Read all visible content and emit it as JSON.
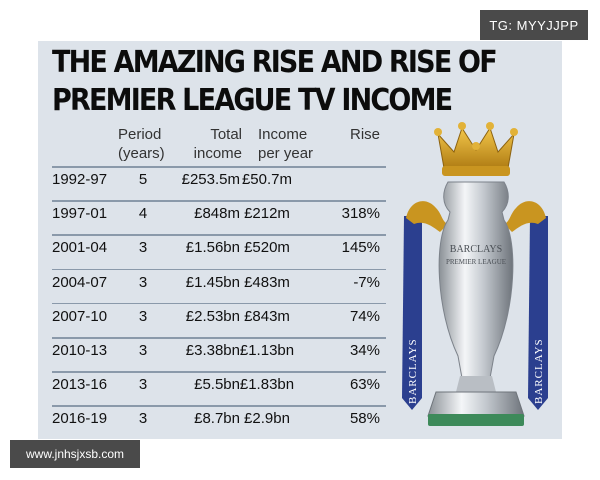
{
  "watermarks": {
    "top": "TG: MYYJJPP",
    "bottom": "www.jnhsjxsb.com"
  },
  "title": {
    "line1": "THE AMAZING RISE AND RISE OF",
    "line2": "PREMIER LEAGUE TV INCOME"
  },
  "headers": {
    "period_l1": "Period",
    "period_l2": "(years)",
    "total_l1": "Total",
    "total_l2": "income",
    "peryear_l1": "Income",
    "peryear_l2": "per year",
    "rise": "Rise"
  },
  "rows": [
    {
      "period": "1992-97",
      "years": "5",
      "total": "£253.5m",
      "per_year": "£50.7m",
      "rise": ""
    },
    {
      "period": "1997-01",
      "years": "4",
      "total": "£848m",
      "per_year": "£212m",
      "rise": "318%"
    },
    {
      "period": "2001-04",
      "years": "3",
      "total": "£1.56bn",
      "per_year": "£520m",
      "rise": "145%"
    },
    {
      "period": "2004-07",
      "years": "3",
      "total": "£1.45bn",
      "per_year": "£483m",
      "rise": "-7%"
    },
    {
      "period": "2007-10",
      "years": "3",
      "total": "£2.53bn",
      "per_year": "£843m",
      "rise": "74%"
    },
    {
      "period": "2010-13",
      "years": "3",
      "total": "£3.38bn",
      "per_year": "£1.13bn",
      "rise": "34%"
    },
    {
      "period": "2013-16",
      "years": "3",
      "total": "£5.5bn",
      "per_year": "£1.83bn",
      "rise": "63%"
    },
    {
      "period": "2016-19",
      "years": "3",
      "total": "£8.7bn",
      "per_year": "£2.9bn",
      "rise": "58%"
    }
  ],
  "trophy": {
    "icon": "premier-league-trophy-icon",
    "engraving_l1": "BARCLAYS",
    "engraving_l2": "PREMIER LEAGUE",
    "ribbon_text": "BARCLAYS",
    "colors": {
      "gold": "#d8a21e",
      "ribbon": "#2b3f8f",
      "silver": "#cfd3d8"
    }
  }
}
